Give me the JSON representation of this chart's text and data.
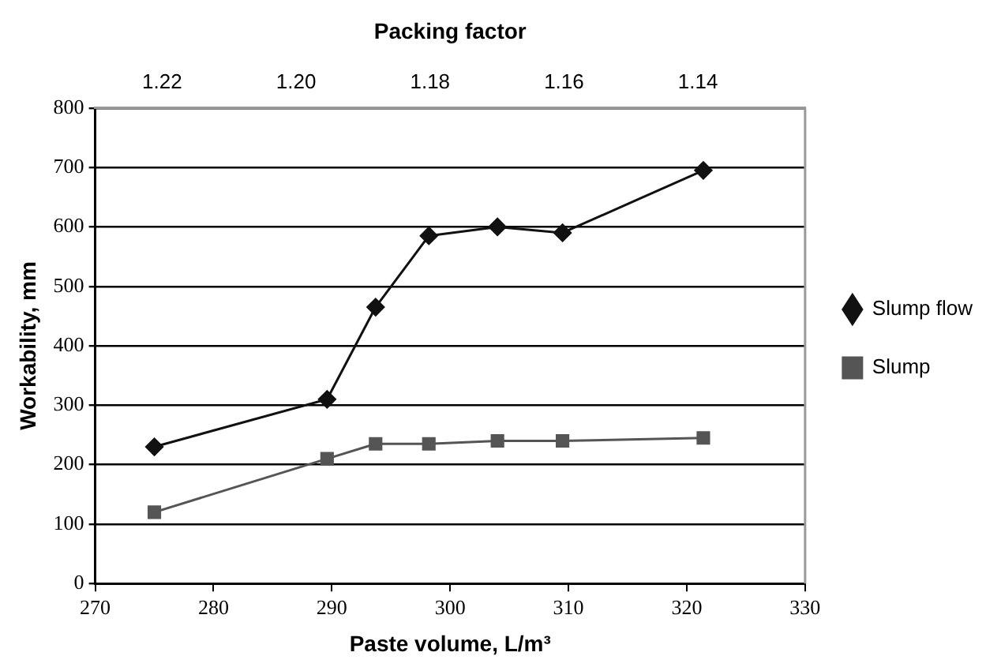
{
  "chart_data": {
    "type": "line",
    "xlabel": "Paste volume, L/m³",
    "ylabel": "Workability, mm",
    "x2label": "Packing factor",
    "x": [
      275,
      289.6,
      293.7,
      298.2,
      304,
      309.5,
      321.4
    ],
    "series": [
      {
        "name": "Slump flow",
        "color": "#111111",
        "marker": "diamond",
        "values": [
          230,
          310,
          465,
          585,
          600,
          590,
          695
        ]
      },
      {
        "name": "Slump",
        "color": "#555555",
        "marker": "square",
        "values": [
          120,
          210,
          235,
          235,
          240,
          240,
          245
        ]
      }
    ],
    "xlim": [
      270,
      330
    ],
    "xticks": [
      270,
      280,
      290,
      300,
      310,
      320,
      330
    ],
    "ylim": [
      0,
      800
    ],
    "yticks": [
      0,
      100,
      200,
      300,
      400,
      500,
      600,
      700,
      800
    ],
    "x2lim": [
      1.23,
      1.124
    ],
    "x2ticks": [
      {
        "value": 1.22,
        "label": "1.22"
      },
      {
        "value": 1.2,
        "label": "1.20"
      },
      {
        "value": 1.18,
        "label": "1.18"
      },
      {
        "value": 1.16,
        "label": "1.16"
      },
      {
        "value": 1.14,
        "label": "1.14"
      }
    ],
    "grid": "y",
    "legend": "right",
    "line_style": "solid"
  }
}
